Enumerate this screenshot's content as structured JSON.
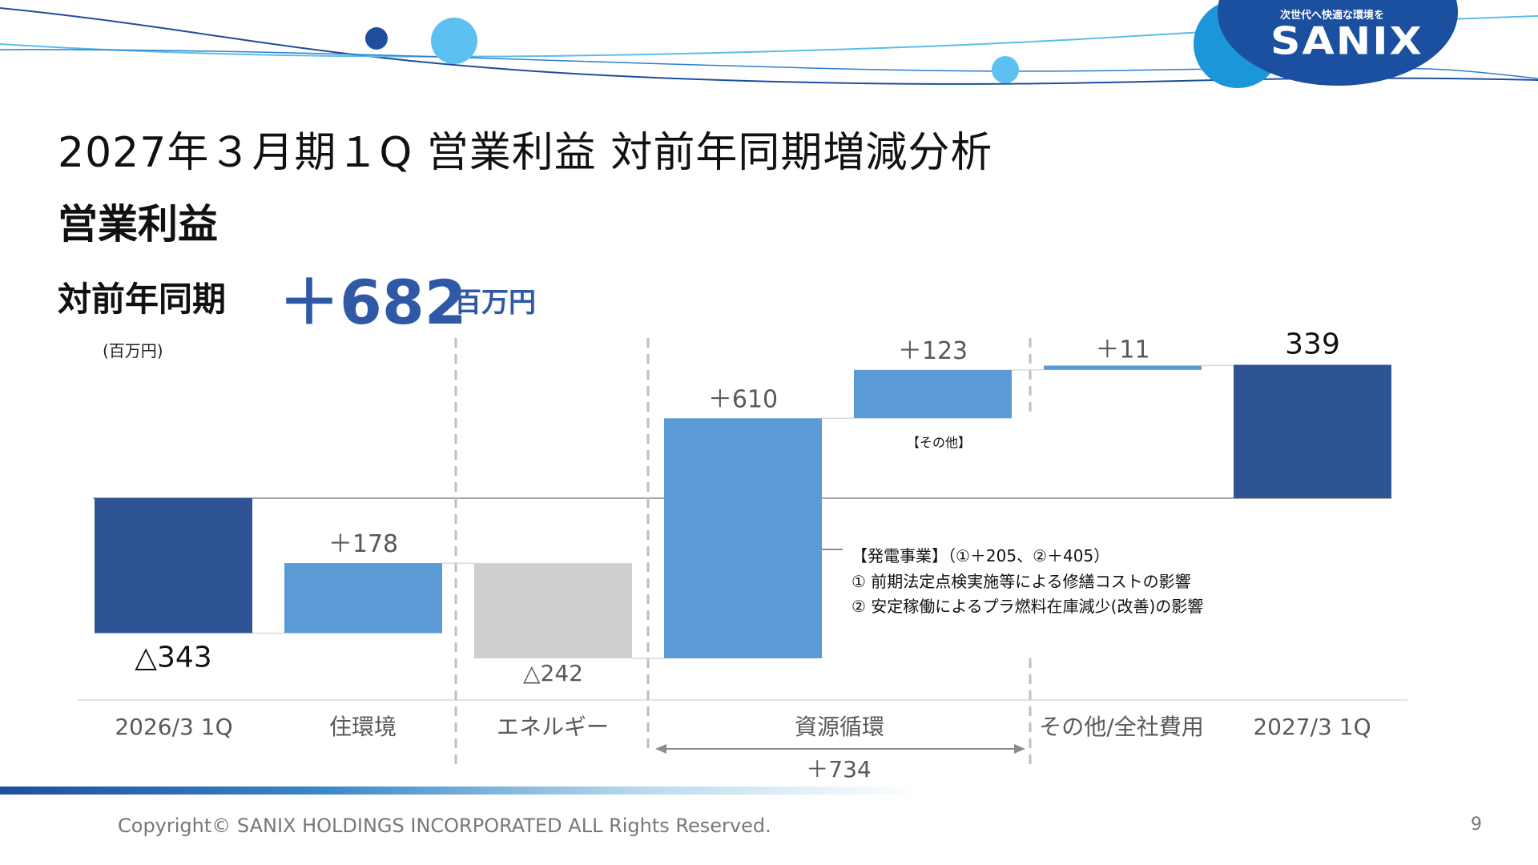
{
  "slide": {
    "title": "2027年３月期１Q 営業利益 対前年同期増減分析",
    "subtitle": "営業利益",
    "yoy_label": "対前年同期",
    "yoy_value": "＋682",
    "yoy_unit": "百万円",
    "unit_note": "(百万円)",
    "footer": "Copyright© SANIX HOLDINGS INCORPORATED ALL Rights Reserved.",
    "page_number": "9"
  },
  "brand": {
    "tagline": "次世代へ快適な環境を",
    "name": "SANIX"
  },
  "annotations": {
    "bar_note": "【その他】",
    "power_note": [
      "【発電事業】（①＋205、②＋405）",
      "① 前期法定点検実施等による修繕コストの影響",
      "② 安定稼働によるプラ燃料在庫減少(改善)の影響"
    ],
    "resource_total": "＋734"
  },
  "colors": {
    "dark_blue": "#2e5495",
    "light_blue": "#5b9bd5",
    "gray": "#d0cece",
    "yoy_text": "#2f58a6"
  },
  "chart_data": {
    "type": "bar",
    "subtype": "waterfall",
    "unit": "百万円",
    "categories": [
      "2026/3 1Q",
      "住環境",
      "エネルギー",
      "資源循環",
      "その他/全社費用",
      "2027/3 1Q"
    ],
    "bars": [
      {
        "category": "2026/3 1Q",
        "start": 0,
        "end": -343,
        "label": "△343",
        "color": "dark_blue"
      },
      {
        "category": "住環境",
        "start": -343,
        "end": -165,
        "label": "＋178",
        "color": "light_blue"
      },
      {
        "category": "エネルギー",
        "start": -165,
        "end": -407,
        "label": "△242",
        "color": "gray"
      },
      {
        "category": "資源循環",
        "start": -407,
        "end": 203,
        "label": "＋610",
        "color": "light_blue"
      },
      {
        "category": "資源循環",
        "start": 203,
        "end": 326,
        "label": "＋123",
        "color": "light_blue"
      },
      {
        "category": "その他/全社費用",
        "start": 326,
        "end": 337,
        "label": "＋11",
        "color": "light_blue"
      },
      {
        "category": "2027/3 1Q",
        "start": 0,
        "end": 339,
        "label": "339",
        "color": "dark_blue"
      }
    ]
  }
}
